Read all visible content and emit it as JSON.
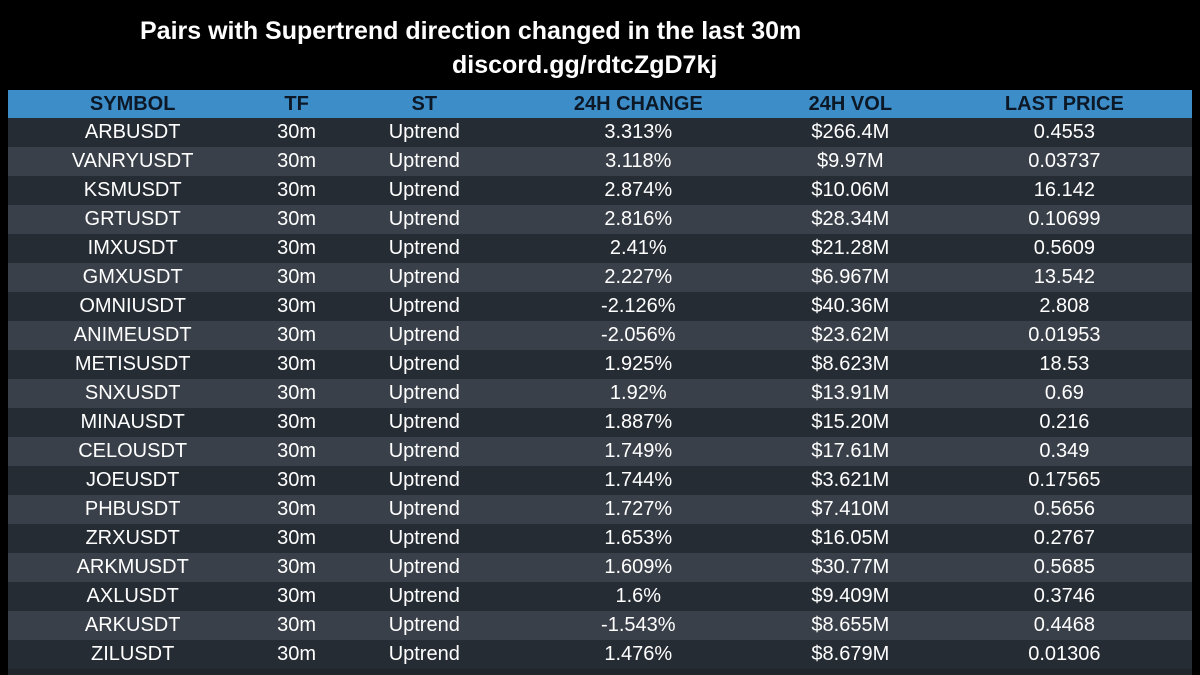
{
  "header": {
    "title": "Pairs with Supertrend direction changed in the last 30m",
    "link": "discord.gg/rdtcZgD7kj"
  },
  "colors": {
    "page_background": "#000000",
    "header_row_background": "#3d8dc8",
    "header_text": "#0d1826",
    "row_dark": "#262c34",
    "row_light": "#3a4049",
    "cell_text": "#ffffff"
  },
  "table": {
    "columns": [
      "SYMBOL",
      "TF",
      "ST",
      "24H CHANGE",
      "24H VOL",
      "LAST PRICE"
    ],
    "rows": [
      {
        "symbol": "ARBUSDT",
        "tf": "30m",
        "st": "Uptrend",
        "change": "3.313%",
        "vol": "$266.4M",
        "price": "0.4553"
      },
      {
        "symbol": "VANRYUSDT",
        "tf": "30m",
        "st": "Uptrend",
        "change": "3.118%",
        "vol": "$9.97M",
        "price": "0.03737"
      },
      {
        "symbol": "KSMUSDT",
        "tf": "30m",
        "st": "Uptrend",
        "change": "2.874%",
        "vol": "$10.06M",
        "price": "16.142"
      },
      {
        "symbol": "GRTUSDT",
        "tf": "30m",
        "st": "Uptrend",
        "change": "2.816%",
        "vol": "$28.34M",
        "price": "0.10699"
      },
      {
        "symbol": "IMXUSDT",
        "tf": "30m",
        "st": "Uptrend",
        "change": "2.41%",
        "vol": "$21.28M",
        "price": "0.5609"
      },
      {
        "symbol": "GMXUSDT",
        "tf": "30m",
        "st": "Uptrend",
        "change": "2.227%",
        "vol": "$6.967M",
        "price": "13.542"
      },
      {
        "symbol": "OMNIUSDT",
        "tf": "30m",
        "st": "Uptrend",
        "change": "-2.126%",
        "vol": "$40.36M",
        "price": "2.808"
      },
      {
        "symbol": "ANIMEUSDT",
        "tf": "30m",
        "st": "Uptrend",
        "change": "-2.056%",
        "vol": "$23.62M",
        "price": "0.01953"
      },
      {
        "symbol": "METISUSDT",
        "tf": "30m",
        "st": "Uptrend",
        "change": "1.925%",
        "vol": "$8.623M",
        "price": "18.53"
      },
      {
        "symbol": "SNXUSDT",
        "tf": "30m",
        "st": "Uptrend",
        "change": "1.92%",
        "vol": "$13.91M",
        "price": "0.69"
      },
      {
        "symbol": "MINAUSDT",
        "tf": "30m",
        "st": "Uptrend",
        "change": "1.887%",
        "vol": "$15.20M",
        "price": "0.216"
      },
      {
        "symbol": "CELOUSDT",
        "tf": "30m",
        "st": "Uptrend",
        "change": "1.749%",
        "vol": "$17.61M",
        "price": "0.349"
      },
      {
        "symbol": "JOEUSDT",
        "tf": "30m",
        "st": "Uptrend",
        "change": "1.744%",
        "vol": "$3.621M",
        "price": "0.17565"
      },
      {
        "symbol": "PHBUSDT",
        "tf": "30m",
        "st": "Uptrend",
        "change": "1.727%",
        "vol": "$7.410M",
        "price": "0.5656"
      },
      {
        "symbol": "ZRXUSDT",
        "tf": "30m",
        "st": "Uptrend",
        "change": "1.653%",
        "vol": "$16.05M",
        "price": "0.2767"
      },
      {
        "symbol": "ARKMUSDT",
        "tf": "30m",
        "st": "Uptrend",
        "change": "1.609%",
        "vol": "$30.77M",
        "price": "0.5685"
      },
      {
        "symbol": "AXLUSDT",
        "tf": "30m",
        "st": "Uptrend",
        "change": "1.6%",
        "vol": "$9.409M",
        "price": "0.3746"
      },
      {
        "symbol": "ARKUSDT",
        "tf": "30m",
        "st": "Uptrend",
        "change": "-1.543%",
        "vol": "$8.655M",
        "price": "0.4468"
      },
      {
        "symbol": "ZILUSDT",
        "tf": "30m",
        "st": "Uptrend",
        "change": "1.476%",
        "vol": "$8.679M",
        "price": "0.01306"
      }
    ]
  }
}
